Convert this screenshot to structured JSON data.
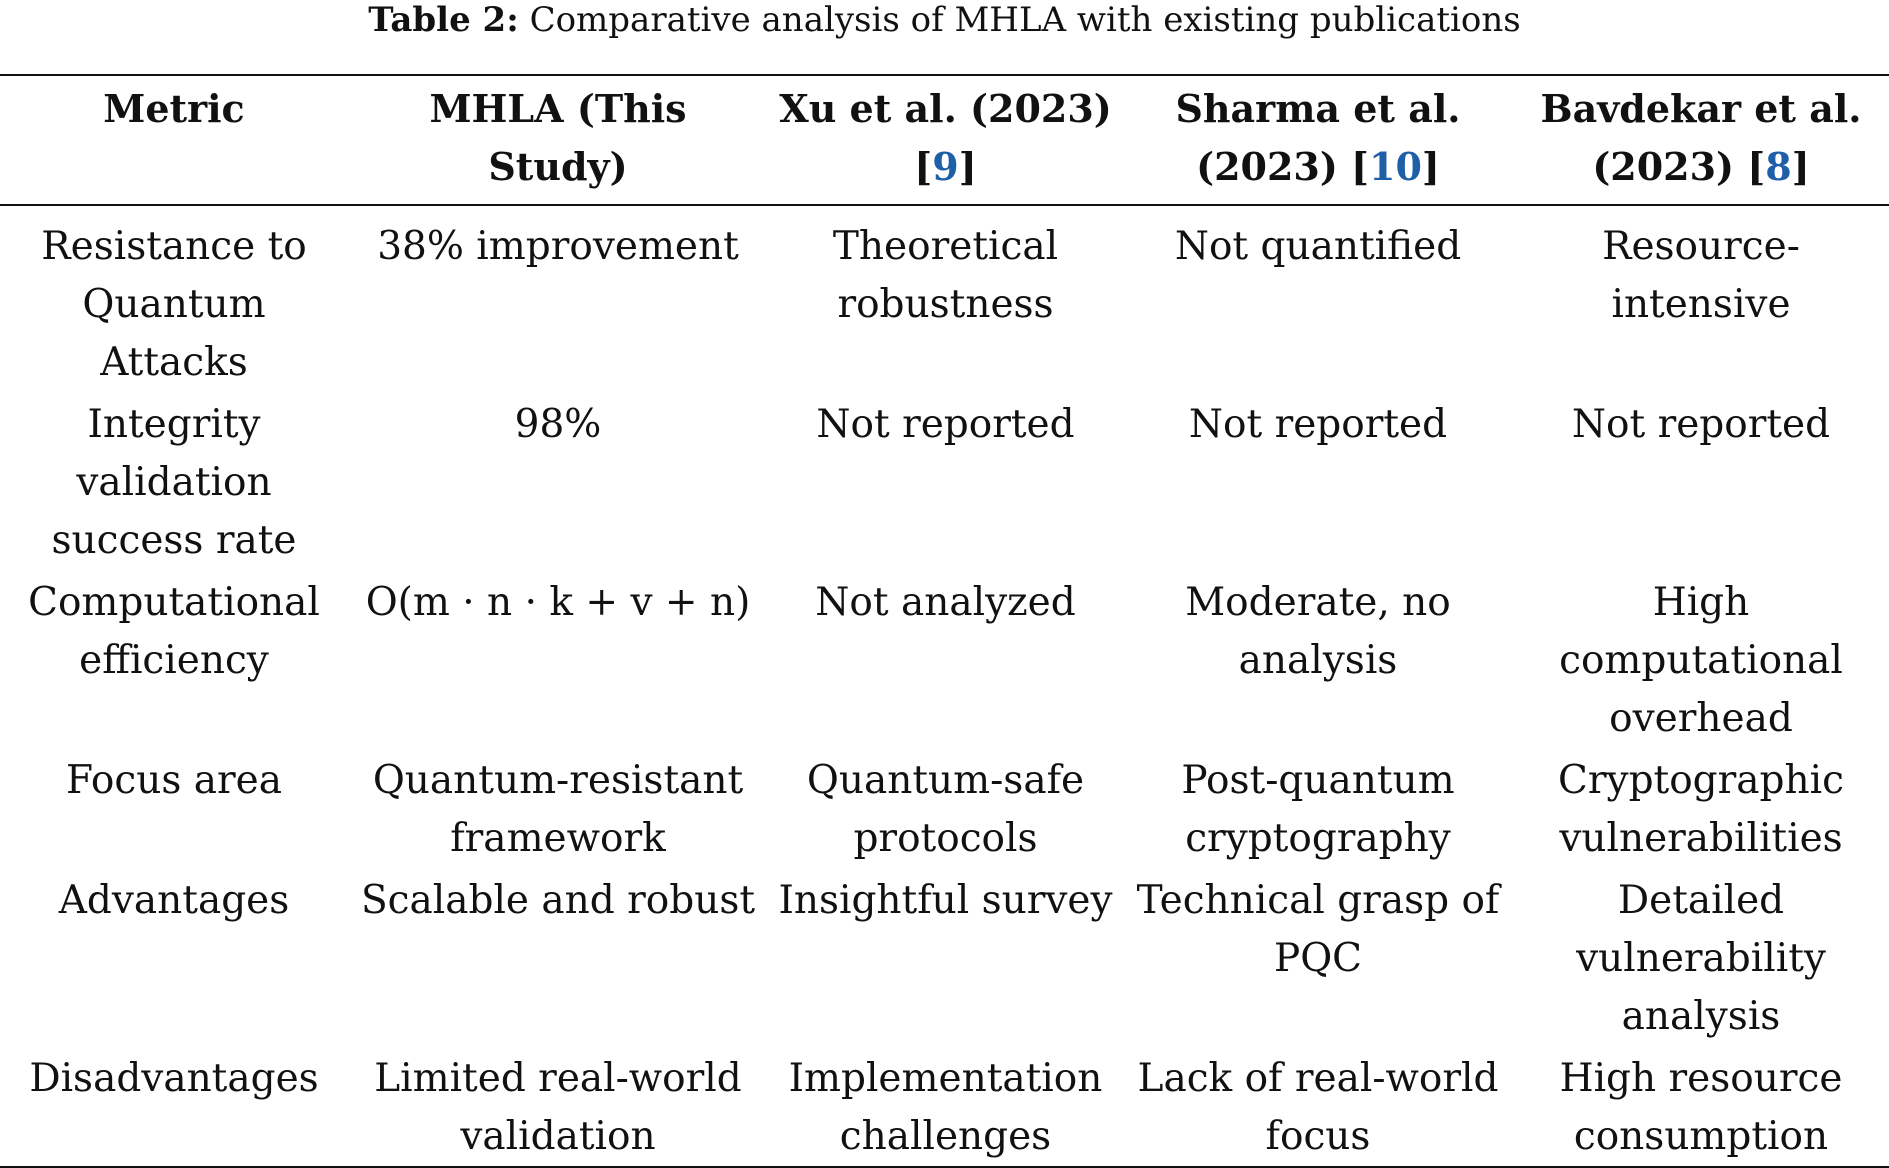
{
  "caption": {
    "label": "Table 2:",
    "text": "Comparative analysis of MHLA with existing publications"
  },
  "colors": {
    "reference_link": "#1f5fa8",
    "rule": "#111111"
  },
  "headers": [
    {
      "text": "Metric",
      "ref": ""
    },
    {
      "text": "MHLA (This Study)",
      "ref": ""
    },
    {
      "text": "Xu et al. (2023) [",
      "ref": "9",
      "close": "]"
    },
    {
      "text": "Sharma et al. (2023) [",
      "ref": "10",
      "close": "]"
    },
    {
      "text": "Bavdekar et al. (2023) [",
      "ref": "8",
      "close": "]"
    }
  ],
  "rows": [
    [
      "Resistance to Quantum Attacks",
      "38% improvement",
      "Theoretical robustness",
      "Not quantified",
      "Resource-intensive"
    ],
    [
      "Integrity validation success rate",
      "98%",
      "Not reported",
      "Not reported",
      "Not reported"
    ],
    [
      "Computational efficiency",
      "O(m · n · k + v + n)",
      "Not analyzed",
      "Moderate, no analysis",
      "High computational overhead"
    ],
    [
      "Focus area",
      "Quantum-resistant framework",
      "Quantum-safe protocols",
      "Post-quantum cryptography",
      "Cryptographic vulnerabilities"
    ],
    [
      "Advantages",
      "Scalable and robust",
      "Insightful survey",
      "Technical grasp of PQC",
      "Detailed vulnerability analysis"
    ],
    [
      "Disadvantages",
      "Limited real-world validation",
      "Implementation challenges",
      "Lack of real-world focus",
      "High resource consumption"
    ]
  ]
}
